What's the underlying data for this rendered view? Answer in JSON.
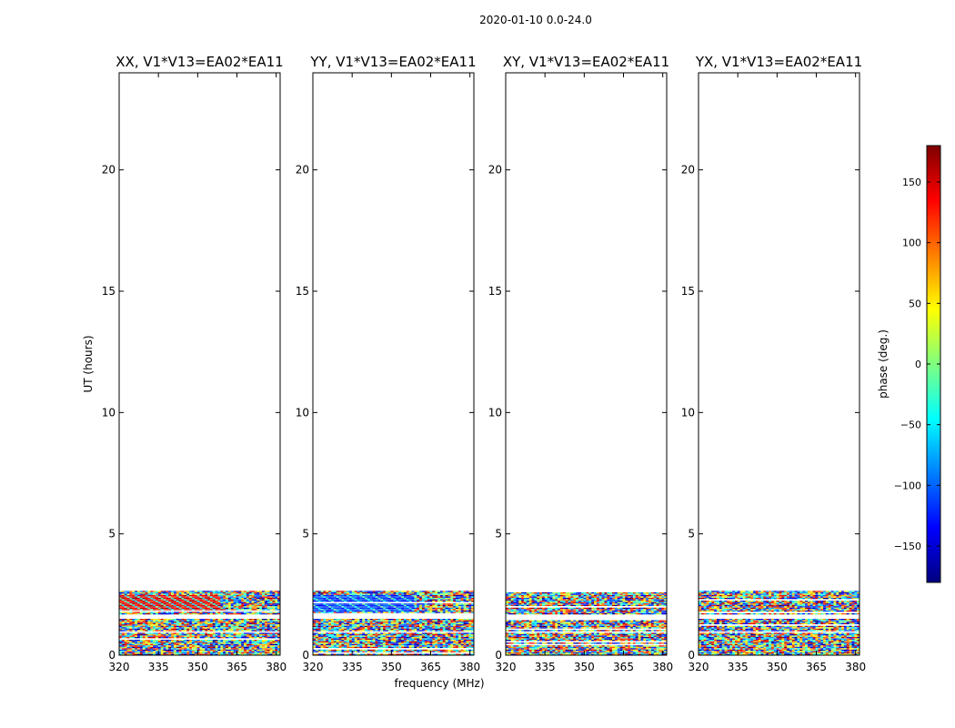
{
  "figure": {
    "suptitle": "2020-01-10 0.0-24.0",
    "shared_xlabel": "frequency (MHz)",
    "shared_ylabel": "UT (hours)"
  },
  "colorbar": {
    "label": "phase (deg.)",
    "range": [
      -180,
      180
    ],
    "ticks": [
      -150,
      -100,
      -50,
      0,
      50,
      100,
      150
    ],
    "tick_labels": [
      "−150",
      "−100",
      "−50",
      "0",
      "50",
      "100",
      "150"
    ],
    "colormap": "jet",
    "stops": [
      "#00007f",
      "#0000ff",
      "#007fff",
      "#00ffff",
      "#7fff7f",
      "#ffff00",
      "#ff7f00",
      "#ff0000",
      "#7f0000"
    ]
  },
  "chart_data": [
    {
      "type": "heatmap",
      "title": "XX, V1*V13=EA02*EA11",
      "xlabel": "",
      "ylabel": "UT (hours)",
      "xlim": [
        320,
        381.5
      ],
      "ylim": [
        0,
        24
      ],
      "xticks": [
        320,
        335,
        350,
        365,
        380
      ],
      "yticks": [
        0,
        5,
        10,
        15,
        20
      ],
      "data_extent_hours": [
        0,
        2.65
      ],
      "pattern": "coherent red phase band 320-359 MHz around 1.8-2.5 h; noisy elsewhere"
    },
    {
      "type": "heatmap",
      "title": "YY, V1*V13=EA02*EA11",
      "xlabel": "frequency (MHz)",
      "ylabel": "",
      "xlim": [
        320,
        381.5
      ],
      "ylim": [
        0,
        24
      ],
      "xticks": [
        320,
        335,
        350,
        365,
        380
      ],
      "yticks": [
        0,
        5,
        10,
        15,
        20
      ],
      "data_extent_hours": [
        0,
        2.65
      ],
      "pattern": "coherent blue phase band 320-359 MHz around 1.8-2.5 h; noisy elsewhere"
    },
    {
      "type": "heatmap",
      "title": "XY, V1*V13=EA02*EA11",
      "xlabel": "",
      "ylabel": "",
      "xlim": [
        320,
        381.5
      ],
      "ylim": [
        0,
        24
      ],
      "xticks": [
        320,
        335,
        350,
        365,
        380
      ],
      "yticks": [
        0,
        5,
        10,
        15,
        20
      ],
      "data_extent_hours": [
        0,
        2.65
      ],
      "pattern": "noisy phase"
    },
    {
      "type": "heatmap",
      "title": "YX, V1*V13=EA02*EA11",
      "xlabel": "",
      "ylabel": "",
      "xlim": [
        320,
        381.5
      ],
      "ylim": [
        0,
        24
      ],
      "xticks": [
        320,
        335,
        350,
        365,
        380
      ],
      "yticks": [
        0,
        5,
        10,
        15,
        20
      ],
      "data_extent_hours": [
        0,
        2.65
      ],
      "pattern": "noisy phase"
    }
  ]
}
